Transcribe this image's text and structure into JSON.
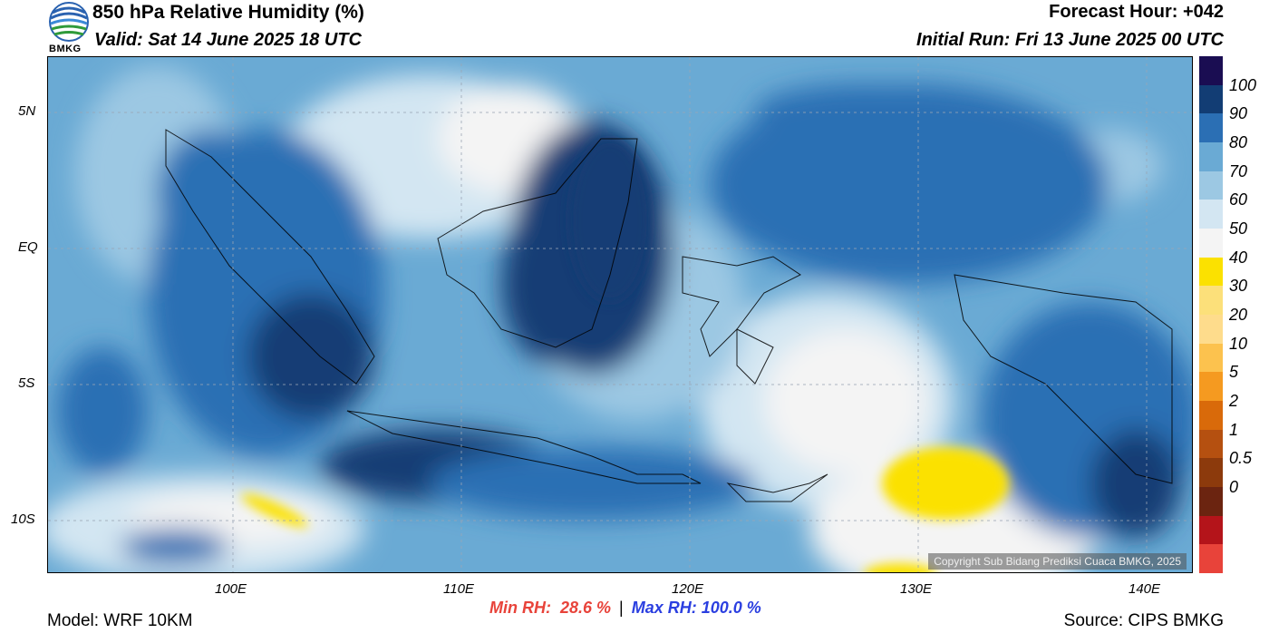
{
  "header": {
    "title": "850 hPa Relative Humidity (%)",
    "valid": "Valid: Sat 14 June 2025 18 UTC",
    "forecast_hour": "Forecast Hour: +042",
    "initial_run": "Initial Run: Fri 13 June 2025 00 UTC",
    "logo_text": "BMKG"
  },
  "map": {
    "lat_labels": [
      "5N",
      "EQ",
      "5S",
      "10S"
    ],
    "lon_labels": [
      "100E",
      "110E",
      "120E",
      "130E",
      "140E"
    ],
    "copyright": "Copyright Sub Bidang Prediksi Cuaca BMKG, 2025"
  },
  "colorbar": {
    "labels": [
      "100",
      "90",
      "80",
      "70",
      "60",
      "50",
      "40",
      "30",
      "20",
      "10",
      "5",
      "2",
      "1",
      "0.5",
      "0"
    ],
    "colors": [
      "#e8433a",
      "#b4141a",
      "#6b2410",
      "#8c3a0c",
      "#b55010",
      "#d96a0a",
      "#f59a20",
      "#fcc24e",
      "#fedc8c",
      "#fce07a",
      "#fbe100",
      "#f4f4f4",
      "#d3e6f2",
      "#9cc8e3",
      "#6aaad4",
      "#2b6fb4",
      "#123d74",
      "#1a0d52"
    ]
  },
  "footer": {
    "model": "Model: WRF 10KM",
    "min_rh": "Min RH:  28.6 %",
    "separator": "|",
    "max_rh": "Max RH: 100.0 %",
    "source": "Source: CIPS BMKG"
  },
  "colors": {
    "min_rh": "#e8433a",
    "max_rh": "#2b3fe0"
  }
}
